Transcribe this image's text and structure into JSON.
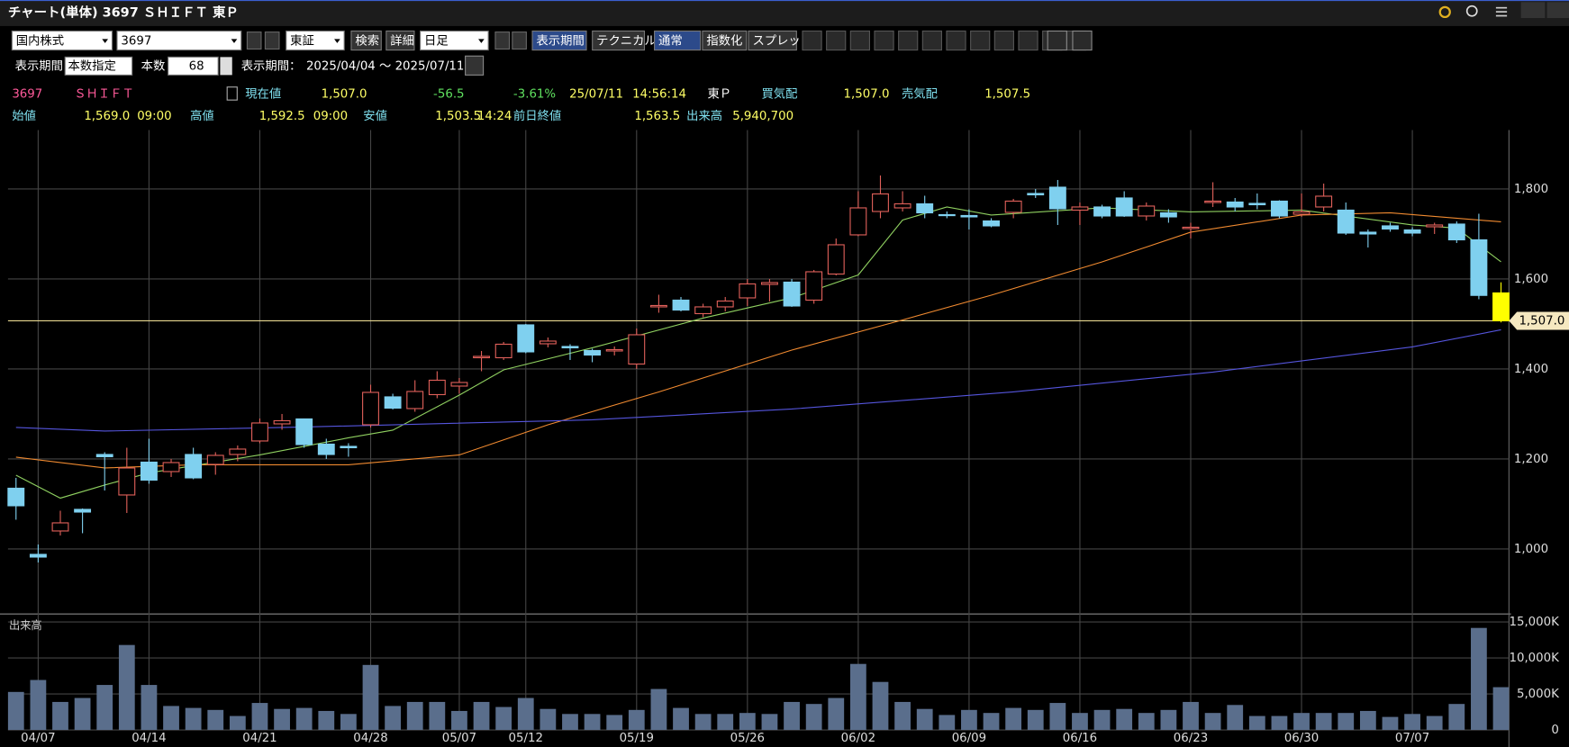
{
  "ui": {
    "title": "チャート(単体) 3697 ＳＨＩＦＴ 東Ｐ",
    "toolbar": [
      "国内株式",
      "3697",
      "東証",
      "検索",
      "詳細",
      "日足",
      "表示期間",
      "テクニカル",
      "通常",
      "指数化",
      "スプレッド"
    ],
    "period_row": [
      "表示期間",
      "本数指定",
      "本数",
      "68",
      "表示期間：",
      "2025/04/04 ～ 2025/07/11"
    ],
    "quote_row1": [
      "3697",
      "ＳＨＩＦＴ",
      "現在値",
      "1,507.0",
      "-56.5",
      "-3.61%",
      "25/07/11",
      "14:56:14",
      "東Ｐ",
      "買気配",
      "1,507.0",
      "売気配",
      "1,507.5"
    ],
    "quote_row2": [
      "始値",
      "1,569.0",
      "09:00",
      "高値",
      "1,592.5",
      "09:00",
      "安値",
      "1,503.5",
      "14:24",
      "前日終値",
      "1,563.5",
      "出来高",
      "5,940,700"
    ]
  },
  "chart_data": [
    {
      "type": "candlestick",
      "categories": [
        null,
        "04/07",
        null,
        null,
        null,
        null,
        "04/14",
        null,
        null,
        null,
        null,
        "04/21",
        null,
        null,
        null,
        null,
        "04/28",
        null,
        null,
        null,
        "05/07",
        null,
        null,
        "05/12",
        null,
        null,
        null,
        null,
        "05/19",
        null,
        null,
        null,
        null,
        "05/26",
        null,
        null,
        null,
        null,
        "06/02",
        null,
        null,
        null,
        null,
        "06/09",
        null,
        null,
        null,
        null,
        "06/16",
        null,
        null,
        null,
        null,
        "06/23",
        null,
        null,
        null,
        null,
        "06/30",
        null,
        null,
        null,
        null,
        "07/07",
        null,
        null,
        null,
        null
      ],
      "open": [
        1135,
        988,
        1040,
        1088,
        1210,
        1120,
        1193,
        1172,
        1210,
        1188,
        1210,
        1240,
        1278,
        1289,
        1233,
        1228,
        1276,
        1338,
        1312,
        1343,
        1362,
        1425,
        1425,
        1498,
        1456,
        1450,
        1441,
        1440,
        1411,
        1538,
        1553,
        1523,
        1538,
        1558,
        1588,
        1593,
        1553,
        1611,
        1698,
        1750,
        1758,
        1767,
        1743,
        1741,
        1729,
        1748,
        1790,
        1804,
        1753,
        1760,
        1780,
        1740,
        1747,
        1712,
        1770,
        1771,
        1768,
        1773,
        1744,
        1760,
        1753,
        1704,
        1718,
        1709,
        1716,
        1722,
        1687,
        1569
      ],
      "high": [
        1158,
        1010,
        1085,
        1090,
        1215,
        1225,
        1245,
        1200,
        1225,
        1215,
        1230,
        1290,
        1300,
        1290,
        1245,
        1235,
        1365,
        1345,
        1375,
        1395,
        1380,
        1440,
        1460,
        1500,
        1470,
        1455,
        1445,
        1450,
        1490,
        1565,
        1560,
        1545,
        1560,
        1600,
        1600,
        1600,
        1620,
        1690,
        1795,
        1830,
        1795,
        1785,
        1750,
        1755,
        1735,
        1778,
        1800,
        1820,
        1770,
        1765,
        1795,
        1770,
        1755,
        1725,
        1815,
        1780,
        1790,
        1775,
        1790,
        1812,
        1770,
        1710,
        1725,
        1715,
        1725,
        1728,
        1745,
        1592.5
      ],
      "low": [
        1065,
        970,
        1030,
        1035,
        1130,
        1080,
        1145,
        1160,
        1155,
        1165,
        1195,
        1235,
        1265,
        1225,
        1200,
        1205,
        1270,
        1310,
        1305,
        1335,
        1345,
        1395,
        1420,
        1435,
        1448,
        1420,
        1415,
        1430,
        1400,
        1525,
        1528,
        1515,
        1528,
        1540,
        1550,
        1538,
        1545,
        1608,
        1695,
        1735,
        1750,
        1735,
        1735,
        1710,
        1715,
        1735,
        1780,
        1720,
        1720,
        1735,
        1738,
        1730,
        1725,
        1690,
        1760,
        1750,
        1755,
        1735,
        1738,
        1750,
        1698,
        1670,
        1705,
        1695,
        1700,
        1680,
        1555,
        1503.5
      ],
      "close": [
        1096,
        982,
        1058,
        1082,
        1205,
        1180,
        1153,
        1192,
        1158,
        1208,
        1222,
        1280,
        1285,
        1232,
        1210,
        1225,
        1348,
        1313,
        1350,
        1375,
        1370,
        1428,
        1455,
        1438,
        1462,
        1447,
        1431,
        1443,
        1476,
        1541,
        1531,
        1538,
        1551,
        1589,
        1592,
        1540,
        1616,
        1676,
        1758,
        1789,
        1767,
        1747,
        1741,
        1738,
        1718,
        1773,
        1787,
        1756,
        1760,
        1740,
        1740,
        1762,
        1738,
        1715,
        1773,
        1760,
        1765,
        1740,
        1749,
        1784,
        1702,
        1700,
        1711,
        1702,
        1720,
        1687,
        1563.5,
        1507
      ],
      "up_color": "#e0605a",
      "down_color": "#7fd0ef",
      "last_color": "#ffff00",
      "ylim": [
        860,
        1931
      ],
      "yticks": [
        {
          "value": 1000,
          "label": "1,000"
        },
        {
          "value": 1200,
          "label": "1,200"
        },
        {
          "value": 1400,
          "label": "1,400"
        },
        {
          "value": 1600,
          "label": "1,600"
        },
        {
          "value": 1800,
          "label": "1,800"
        }
      ],
      "price_line": {
        "value": 1507,
        "label": "1,507.0"
      },
      "lines": [
        {
          "color": "#8fd060",
          "x": [
            0,
            2,
            4,
            6,
            11,
            15,
            17,
            20,
            22,
            26,
            31,
            35,
            38,
            40,
            42,
            44,
            49,
            53,
            58,
            63,
            65,
            67
          ],
          "values": [
            1164,
            1113,
            1142,
            1169,
            1209,
            1247,
            1264,
            1342,
            1398,
            1447,
            1513,
            1558,
            1609,
            1731,
            1760,
            1742,
            1758,
            1749,
            1753,
            1720,
            1713,
            1638
          ]
        },
        {
          "color": "#f08a30",
          "x": [
            0,
            4,
            8,
            15,
            20,
            24,
            29,
            35,
            40,
            44,
            49,
            53,
            58,
            62,
            67
          ],
          "values": [
            1204,
            1180,
            1187,
            1187,
            1209,
            1276,
            1349,
            1442,
            1509,
            1564,
            1638,
            1704,
            1742,
            1747,
            1727
          ]
        },
        {
          "color": "#5555dd",
          "x": [
            0,
            4,
            13,
            26,
            35,
            45,
            54,
            63,
            67
          ],
          "values": [
            1270,
            1262,
            1271,
            1287,
            1311,
            1349,
            1393,
            1449,
            1487
          ]
        }
      ]
    },
    {
      "type": "bar",
      "title": "出来高",
      "color": "#5a6e8c",
      "values": [
        5280,
        6940,
        3890,
        4440,
        6250,
        11800,
        6250,
        3330,
        3060,
        2780,
        1940,
        3750,
        2920,
        3060,
        2640,
        2220,
        9030,
        3330,
        3890,
        3890,
        2640,
        3890,
        3190,
        4440,
        2920,
        2220,
        2220,
        2080,
        2780,
        5690,
        3060,
        2220,
        2220,
        2360,
        2220,
        3890,
        3610,
        4440,
        9170,
        6670,
        3890,
        2920,
        2080,
        2780,
        2360,
        3060,
        2780,
        3750,
        2360,
        2780,
        2920,
        2360,
        2780,
        3890,
        2360,
        3470,
        1940,
        1940,
        2360,
        2360,
        2360,
        2640,
        1810,
        2220,
        1940,
        3610,
        14170,
        5940.7
      ],
      "ylim": [
        0,
        15830
      ],
      "yticks": [
        0,
        {
          "value": 5000,
          "label": "5,000K"
        },
        {
          "value": 10000,
          "label": "10,000K"
        },
        {
          "value": 15000,
          "label": "15,000K"
        }
      ]
    }
  ]
}
